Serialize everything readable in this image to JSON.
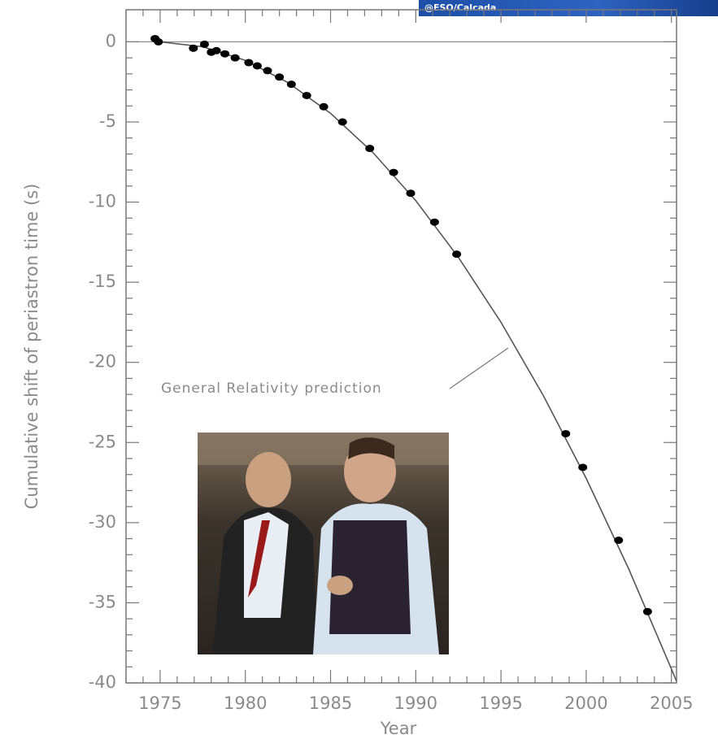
{
  "chart_data": {
    "type": "scatter",
    "watermark": "@ESO/Calcada",
    "xlabel": "Year",
    "ylabel": "Cumulative shift of periastron time (s)",
    "annotation": "General Relativity prediction",
    "xlim": [
      1973,
      2005.3
    ],
    "ylim": [
      -40,
      2
    ],
    "xticks": [
      1975,
      1980,
      1985,
      1990,
      1995,
      2000,
      2005
    ],
    "yticks": [
      0,
      -5,
      -10,
      -15,
      -20,
      -25,
      -30,
      -35,
      -40
    ],
    "points": {
      "color": "#000000",
      "x": [
        1974.7,
        1974.9,
        1976.95,
        1977.6,
        1978,
        1978.3,
        1978.8,
        1979.4,
        1980.2,
        1980.7,
        1981.3,
        1982,
        1982.7,
        1983.6,
        1984.6,
        1985.7,
        1987.3,
        1988.7,
        1989.7,
        1991.1,
        1992.4,
        1998.8,
        1999.8,
        2001.9,
        2003.6
      ],
      "values": [
        0.2,
        0,
        -0.4,
        -0.15,
        -0.65,
        -0.55,
        -0.75,
        -1.0,
        -1.3,
        -1.5,
        -1.8,
        -2.2,
        -2.65,
        -3.35,
        -4.05,
        -5.0,
        -6.65,
        -8.15,
        -9.45,
        -11.25,
        -13.25,
        -24.45,
        -26.55,
        -31.1,
        -35.55
      ]
    },
    "curve": {
      "color": "#555555",
      "x": [
        1975,
        1977.5,
        1980,
        1982.5,
        1985,
        1987.5,
        1990,
        1992.5,
        1995,
        1997.5,
        2000,
        2002.5,
        2005,
        2005.3
      ],
      "values": [
        0,
        -0.31,
        -1.16,
        -2.54,
        -4.46,
        -6.92,
        -9.91,
        -13.44,
        -17.5,
        -22.1,
        -27.24,
        -32.9,
        -39.13,
        -39.9
      ]
    }
  }
}
